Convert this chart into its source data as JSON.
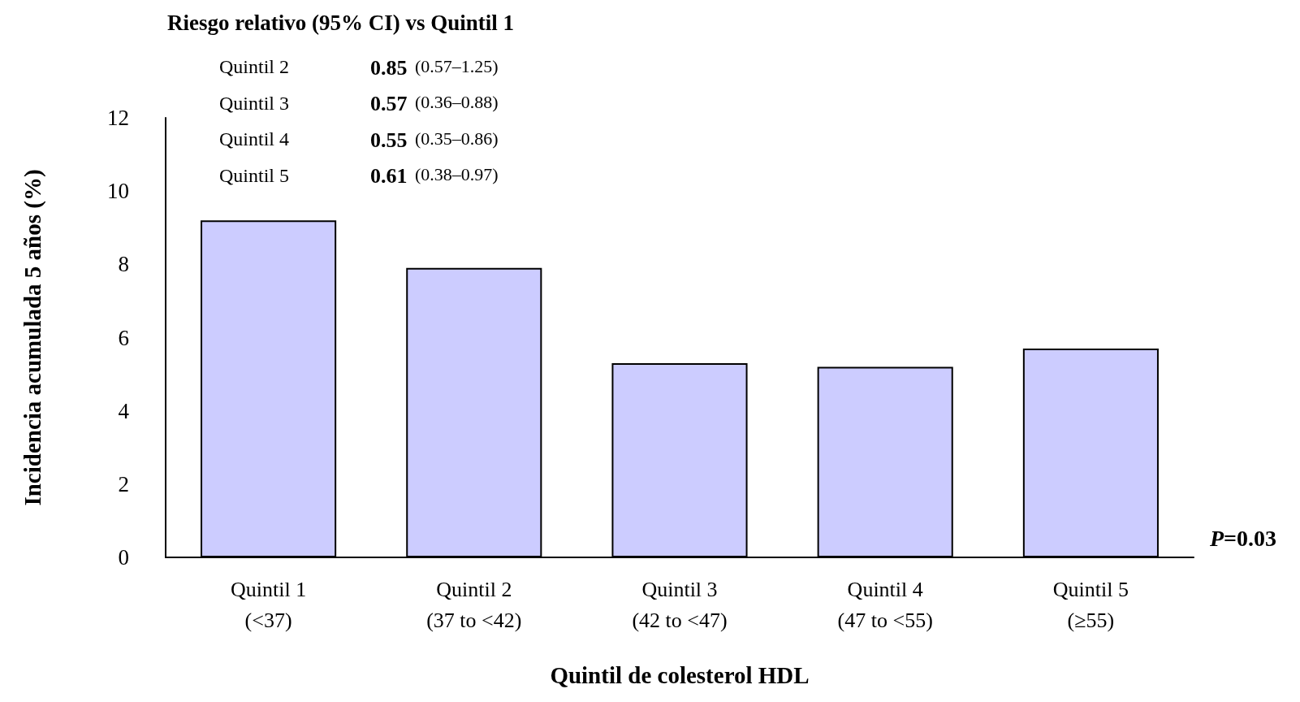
{
  "chart_data": {
    "type": "bar",
    "categories": [
      "Quintil 1\n(<37)",
      "Quintil 2\n(37 to <42)",
      "Quintil 3\n(42 to <47)",
      "Quintil 4\n(47 to <55)",
      "Quintil 5\n(≥55)"
    ],
    "values": [
      9.2,
      7.9,
      5.3,
      5.2,
      5.7
    ],
    "color": "#ccccff",
    "xlabel": "Quintil de colesterol HDL",
    "ylabel": "Incidencia acumulada 5 años (%)",
    "ylim": [
      0,
      12
    ],
    "yticks": [
      0,
      2,
      4,
      6,
      8,
      10,
      12
    ],
    "grid": false,
    "annotations": [
      "Riesgo relativo (95% CI) vs Quintil 1",
      "Quintil 2",
      "0.85",
      "(0.57–1.25)",
      "Quintil 3",
      "0.57",
      "(0.36–0.88)",
      "Quintil 4",
      "0.55",
      "(0.35–0.86)",
      "Quintil 5",
      "0.61",
      "(0.38–0.97)",
      "P=0.03"
    ]
  }
}
